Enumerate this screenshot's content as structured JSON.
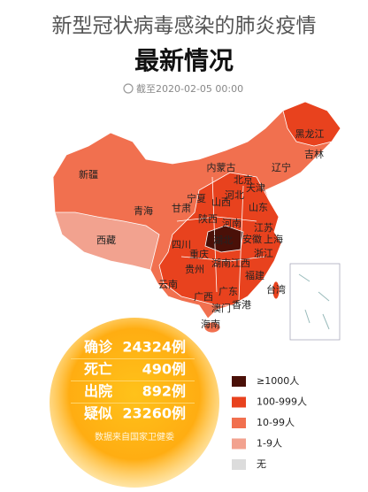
{
  "header": {
    "title": "新型冠状病毒感染的肺炎疫情",
    "subtitle": "最新情况",
    "timestamp": "截至2020-02-05 00:00"
  },
  "map": {
    "provinces": [
      "黑龙江",
      "吉林",
      "辽宁",
      "内蒙古",
      "新疆",
      "北京",
      "天津",
      "河北",
      "宁夏",
      "山西",
      "山东",
      "甘肃",
      "青海",
      "陕西",
      "河南",
      "江苏",
      "安徽",
      "上海",
      "湖北",
      "四川",
      "重庆",
      "浙江",
      "西藏",
      "贵州",
      "湖南",
      "江西",
      "福建",
      "云南",
      "广西",
      "广东",
      "台湾",
      "澳门",
      "香港",
      "海南"
    ]
  },
  "stats": {
    "rows": [
      {
        "label": "确诊",
        "value": "24324例"
      },
      {
        "label": "死亡",
        "value": "490例"
      },
      {
        "label": "出院",
        "value": "892例"
      },
      {
        "label": "疑似",
        "value": "23260例"
      }
    ],
    "source": "数据来自国家卫健委"
  },
  "legend": [
    {
      "label": "≥1000人",
      "color": "#4a1008"
    },
    {
      "label": "100-999人",
      "color": "#e8421e"
    },
    {
      "label": "10-99人",
      "color": "#f1704f"
    },
    {
      "label": "1-9人",
      "color": "#f2a28f"
    },
    {
      "label": "无",
      "color": "#dcdcdc"
    }
  ]
}
